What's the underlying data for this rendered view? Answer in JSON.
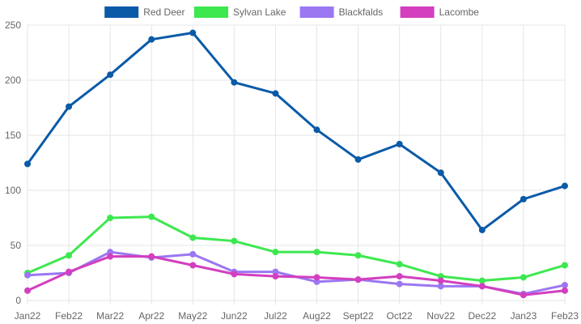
{
  "chart_data": {
    "type": "line",
    "categories": [
      "Jan22",
      "Feb22",
      "Mar22",
      "Apr22",
      "May22",
      "Jun22",
      "Jul22",
      "Aug22",
      "Sept22",
      "Oct22",
      "Nov22",
      "Dec22",
      "Jan23",
      "Feb23"
    ],
    "ylim": [
      0,
      250
    ],
    "yticks": [
      0,
      50,
      100,
      150,
      200,
      250
    ],
    "grid": true,
    "legend_position": "top-center",
    "series": [
      {
        "name": "Red Deer",
        "color": "#0b5aa8",
        "values": [
          124,
          176,
          205,
          237,
          243,
          198,
          188,
          155,
          128,
          142,
          116,
          64,
          92,
          104
        ]
      },
      {
        "name": "Sylvan Lake",
        "color": "#3de84f",
        "values": [
          25,
          41,
          75,
          76,
          57,
          54,
          44,
          44,
          41,
          33,
          22,
          18,
          21,
          32
        ]
      },
      {
        "name": "Blackfalds",
        "color": "#9b77f2",
        "values": [
          23,
          25,
          44,
          39,
          42,
          26,
          26,
          17,
          19,
          15,
          13,
          13,
          6,
          14
        ]
      },
      {
        "name": "Lacombe",
        "color": "#d33fbf",
        "values": [
          9,
          26,
          40,
          40,
          32,
          24,
          22,
          21,
          19,
          22,
          18,
          13,
          5,
          9
        ]
      }
    ]
  }
}
